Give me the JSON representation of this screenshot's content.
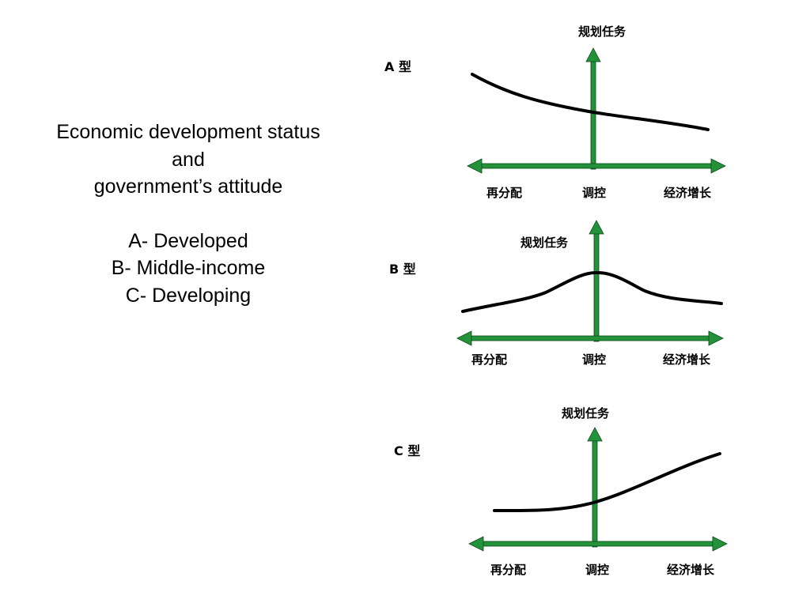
{
  "caption": {
    "line1": "Economic development status",
    "line2": "and",
    "line3": "government’s attitude",
    "items": [
      "A- Developed",
      "B- Middle-income",
      "C- Developing"
    ]
  },
  "colors": {
    "axis": "#23923a",
    "axis_outline": "#0b4a1a",
    "curve": "#000000"
  },
  "diagrams": [
    {
      "type_label": "A 型",
      "top_label": "规划任务",
      "left_label": "再分配",
      "mid_label": "调控",
      "right_label": "经济增长"
    },
    {
      "type_label": "B  型",
      "top_label": "规划任务",
      "left_label": "再分配",
      "mid_label": "调控",
      "right_label": "经济增长"
    },
    {
      "type_label": "C  型",
      "top_label": "规划任务",
      "left_label": "再分配",
      "mid_label": "调控",
      "right_label": "经济增长"
    }
  ]
}
